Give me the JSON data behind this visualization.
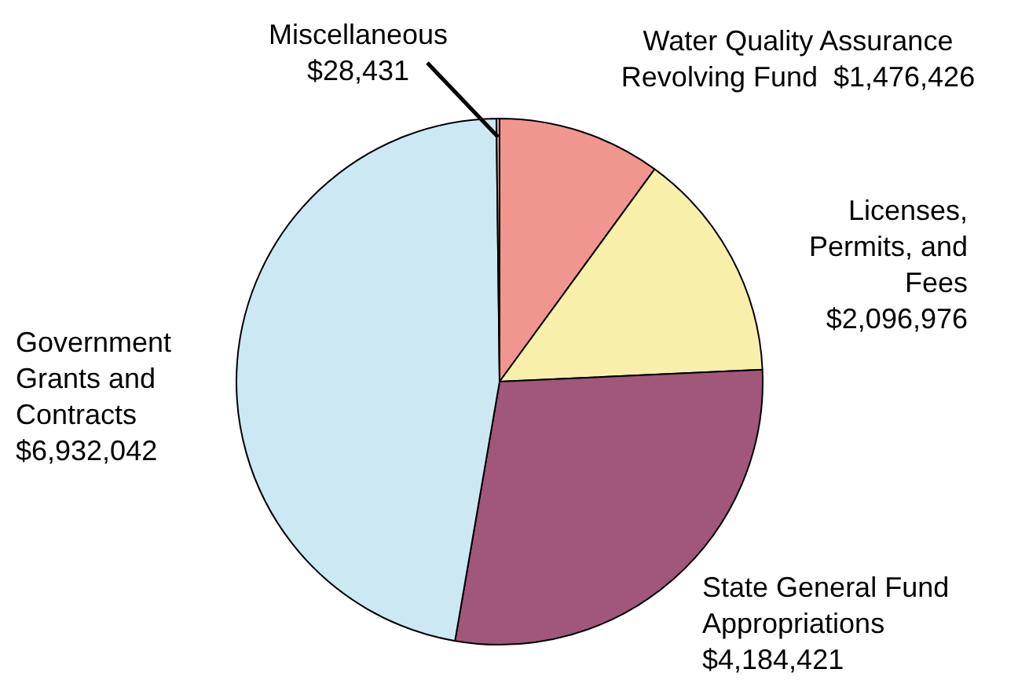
{
  "chart_data": {
    "type": "pie",
    "categories": [
      "Water Quality Assurance Revolving Fund",
      "Licenses, Permits, and Fees",
      "State General Fund Appropriations",
      "Government Grants and Contracts",
      "Miscellaneous"
    ],
    "values": [
      1476426,
      2096976,
      4184421,
      6932042,
      28431
    ],
    "value_labels": [
      "$1,476,426",
      "$2,096,976",
      "$4,184,421",
      "$6,932,042",
      "$28,431"
    ],
    "colors": [
      "#f0968e",
      "#f8f0aa",
      "#a0577a",
      "#cce8f3",
      "#d8b0b0"
    ],
    "legend": false
  }
}
